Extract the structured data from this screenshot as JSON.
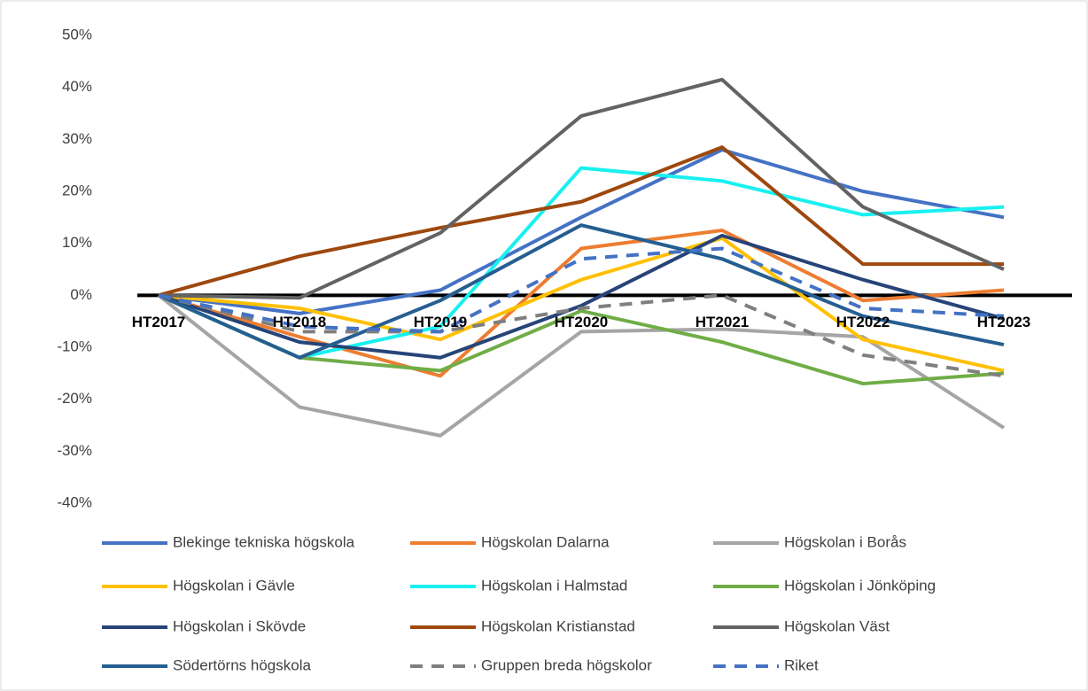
{
  "chart_data": {
    "type": "line",
    "categories": [
      "HT2017",
      "HT2018",
      "HT2019",
      "HT2020",
      "HT2021",
      "HT2022",
      "HT2023"
    ],
    "ylim": [
      -40,
      50
    ],
    "yticks": [
      {
        "value": -40,
        "label": "-40%"
      },
      {
        "value": -30,
        "label": "-30%"
      },
      {
        "value": -20,
        "label": "-20%"
      },
      {
        "value": -10,
        "label": "-10%"
      },
      {
        "value": 0,
        "label": "0%"
      },
      {
        "value": 10,
        "label": "10%"
      },
      {
        "value": 20,
        "label": "20%"
      },
      {
        "value": 30,
        "label": "30%"
      },
      {
        "value": 40,
        "label": "40%"
      },
      {
        "value": 50,
        "label": "50%"
      }
    ],
    "grid": false,
    "series": [
      {
        "name": "Blekinge tekniska högskola",
        "color": "#4472c4",
        "values": [
          0,
          -3.5,
          1,
          15,
          28,
          20,
          15
        ]
      },
      {
        "name": "Högskolan Dalarna",
        "color": "#ed7d31",
        "values": [
          0,
          -8,
          -15.5,
          9,
          12.5,
          -1,
          1
        ]
      },
      {
        "name": "Högskolan i Borås",
        "color": "#a5a5a5",
        "values": [
          0,
          -21.5,
          -27,
          -7,
          -6.5,
          -8,
          -25.5
        ]
      },
      {
        "name": "Högskolan i Gävle",
        "color": "#ffc000",
        "values": [
          0,
          -2.5,
          -8.5,
          3,
          11,
          -8.5,
          -14.5
        ]
      },
      {
        "name": "Högskolan i Halmstad",
        "color": "#19f0f0",
        "values": [
          0,
          -12,
          -6,
          24.5,
          22,
          15.5,
          17
        ]
      },
      {
        "name": "Högskolan i Jönköping",
        "color": "#70ad47",
        "values": [
          0,
          -12,
          -14.5,
          -3,
          -9,
          -17,
          -15
        ]
      },
      {
        "name": "Högskolan i Skövde",
        "color": "#264478",
        "values": [
          0,
          -9,
          -12,
          -2,
          11.5,
          3,
          -4.5
        ]
      },
      {
        "name": "Högskolan Kristianstad",
        "color": "#9e480e",
        "values": [
          0,
          7.5,
          13,
          18,
          28.5,
          6,
          6
        ]
      },
      {
        "name": "Högskolan Väst",
        "color": "#636363",
        "values": [
          0,
          -0.5,
          12,
          34.5,
          41.5,
          17,
          5
        ]
      },
      {
        "name": "Södertörns högskola",
        "color": "#255e91",
        "values": [
          0,
          -12,
          -1,
          13.5,
          7,
          -4,
          -9.5
        ]
      },
      {
        "name": "Gruppen breda högskolor",
        "color": "#7f7f7f",
        "dashed": true,
        "values": [
          0,
          -7,
          -7,
          -2.5,
          0,
          -11.5,
          -15.5
        ]
      },
      {
        "name": "Riket",
        "color": "#4472c4",
        "dashed": true,
        "values": [
          0,
          -6,
          -7,
          7,
          9,
          -2.5,
          -4
        ]
      }
    ]
  }
}
